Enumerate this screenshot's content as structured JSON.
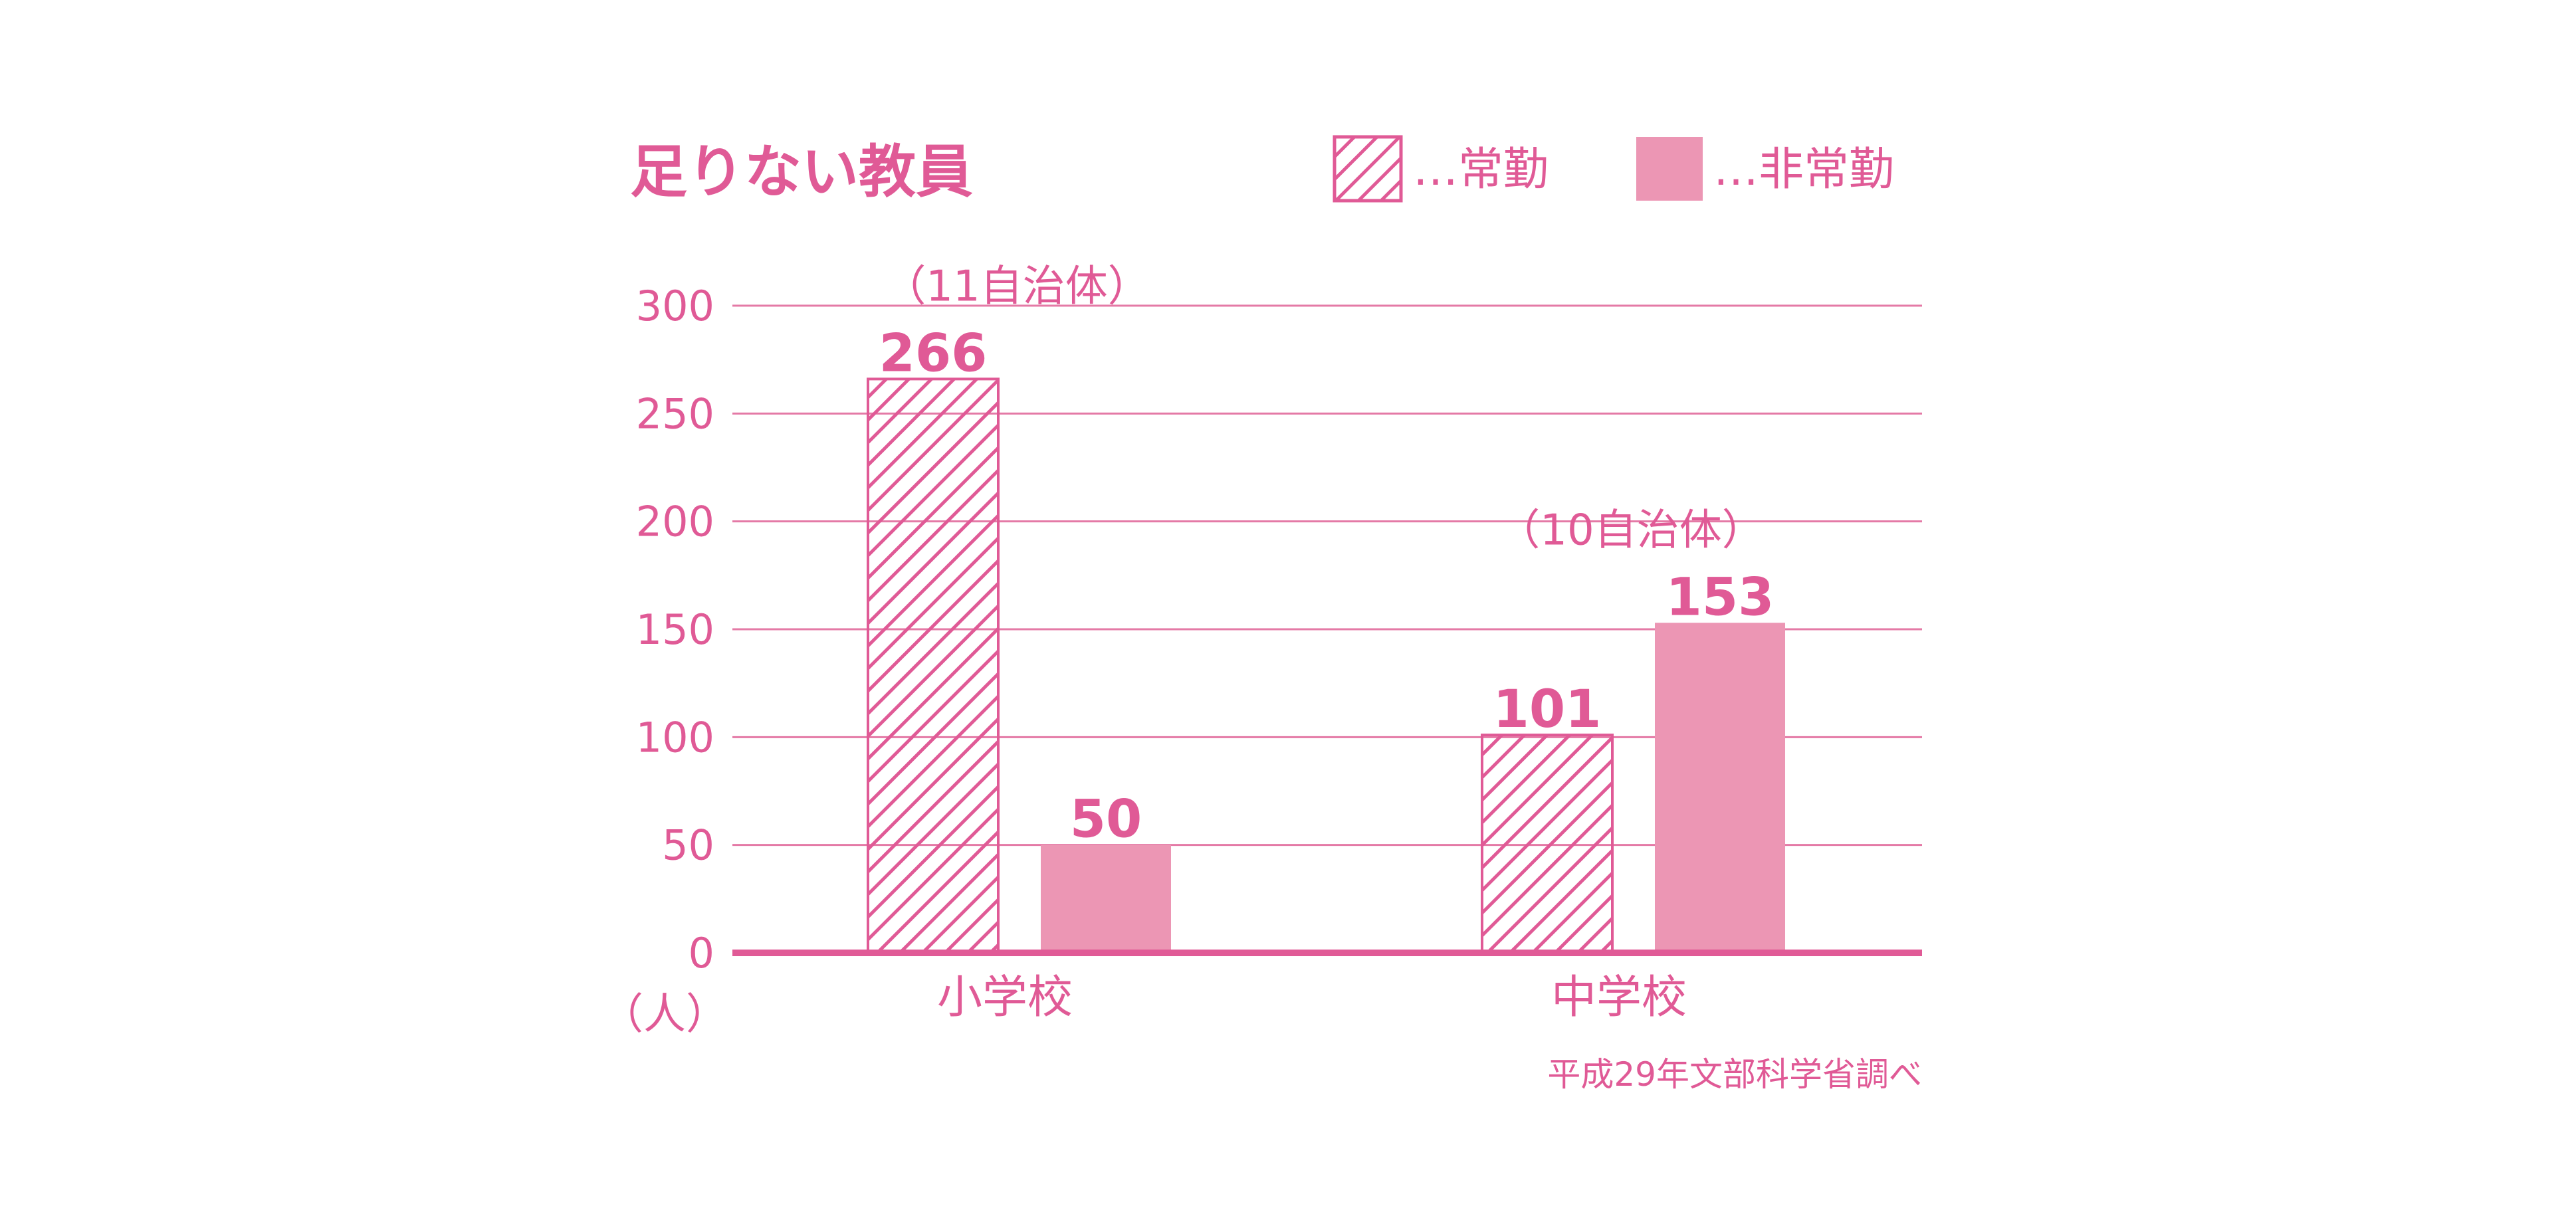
{
  "title": "足りない教員",
  "colors": {
    "accent": "#e05a96",
    "bar_fill": "#ec96b4",
    "gridline": "#e47aa6",
    "axis": "#e05a96"
  },
  "legend": [
    {
      "label": "…常勤",
      "pattern": "hatched"
    },
    {
      "label": "…非常勤",
      "pattern": "solid"
    }
  ],
  "unit_label": "（人）",
  "source": "平成29年文部科学省調べ",
  "chart_data": {
    "type": "bar",
    "title": "足りない教員",
    "categories": [
      "小学校",
      "中学校"
    ],
    "series": [
      {
        "name": "常勤",
        "values": [
          266,
          101
        ],
        "pattern": "hatched"
      },
      {
        "name": "非常勤",
        "values": [
          50,
          153
        ],
        "pattern": "solid"
      }
    ],
    "group_notes": [
      "（11自治体）",
      "（10自治体）"
    ],
    "ylim": [
      0,
      300
    ],
    "yticks": [
      0,
      50,
      100,
      150,
      200,
      250,
      300
    ],
    "ylabel": "（人）",
    "xlabel": "",
    "grid": true,
    "legend_position": "top-right"
  }
}
